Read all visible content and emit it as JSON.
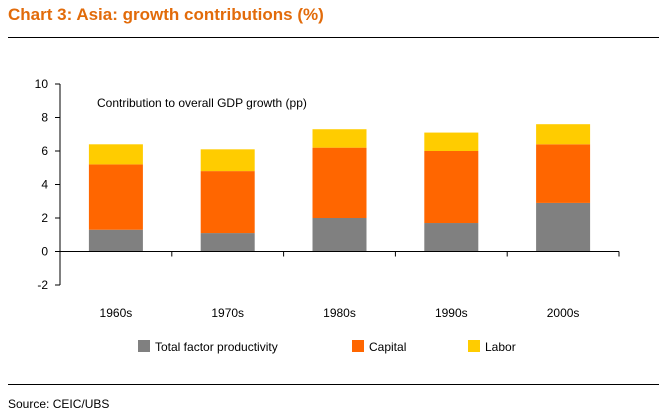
{
  "header": {
    "title": "Chart 3: Asia: growth contributions (%)"
  },
  "footer": {
    "source": "Source: CEIC/UBS"
  },
  "colors": {
    "tfp": "#808080",
    "capital": "#ff6600",
    "labor": "#ffcc00",
    "title": "#e26b0a"
  },
  "chart_data": {
    "type": "bar",
    "stacked": true,
    "annotation": "Contribution to overall GDP growth (pp)",
    "categories": [
      "1960s",
      "1970s",
      "1980s",
      "1990s",
      "2000s"
    ],
    "series": [
      {
        "name": "Total factor productivity",
        "values": [
          1.3,
          1.1,
          2.0,
          1.7,
          2.9
        ]
      },
      {
        "name": "Capital",
        "values": [
          3.9,
          3.7,
          4.2,
          4.3,
          3.5
        ]
      },
      {
        "name": "Labor",
        "values": [
          1.2,
          1.3,
          1.1,
          1.1,
          1.2
        ]
      }
    ],
    "yticks": [
      "-2",
      "0",
      "2",
      "4",
      "6",
      "8",
      "10"
    ],
    "ylim": [
      -2,
      10
    ],
    "grid": false,
    "legend_position": "bottom"
  }
}
